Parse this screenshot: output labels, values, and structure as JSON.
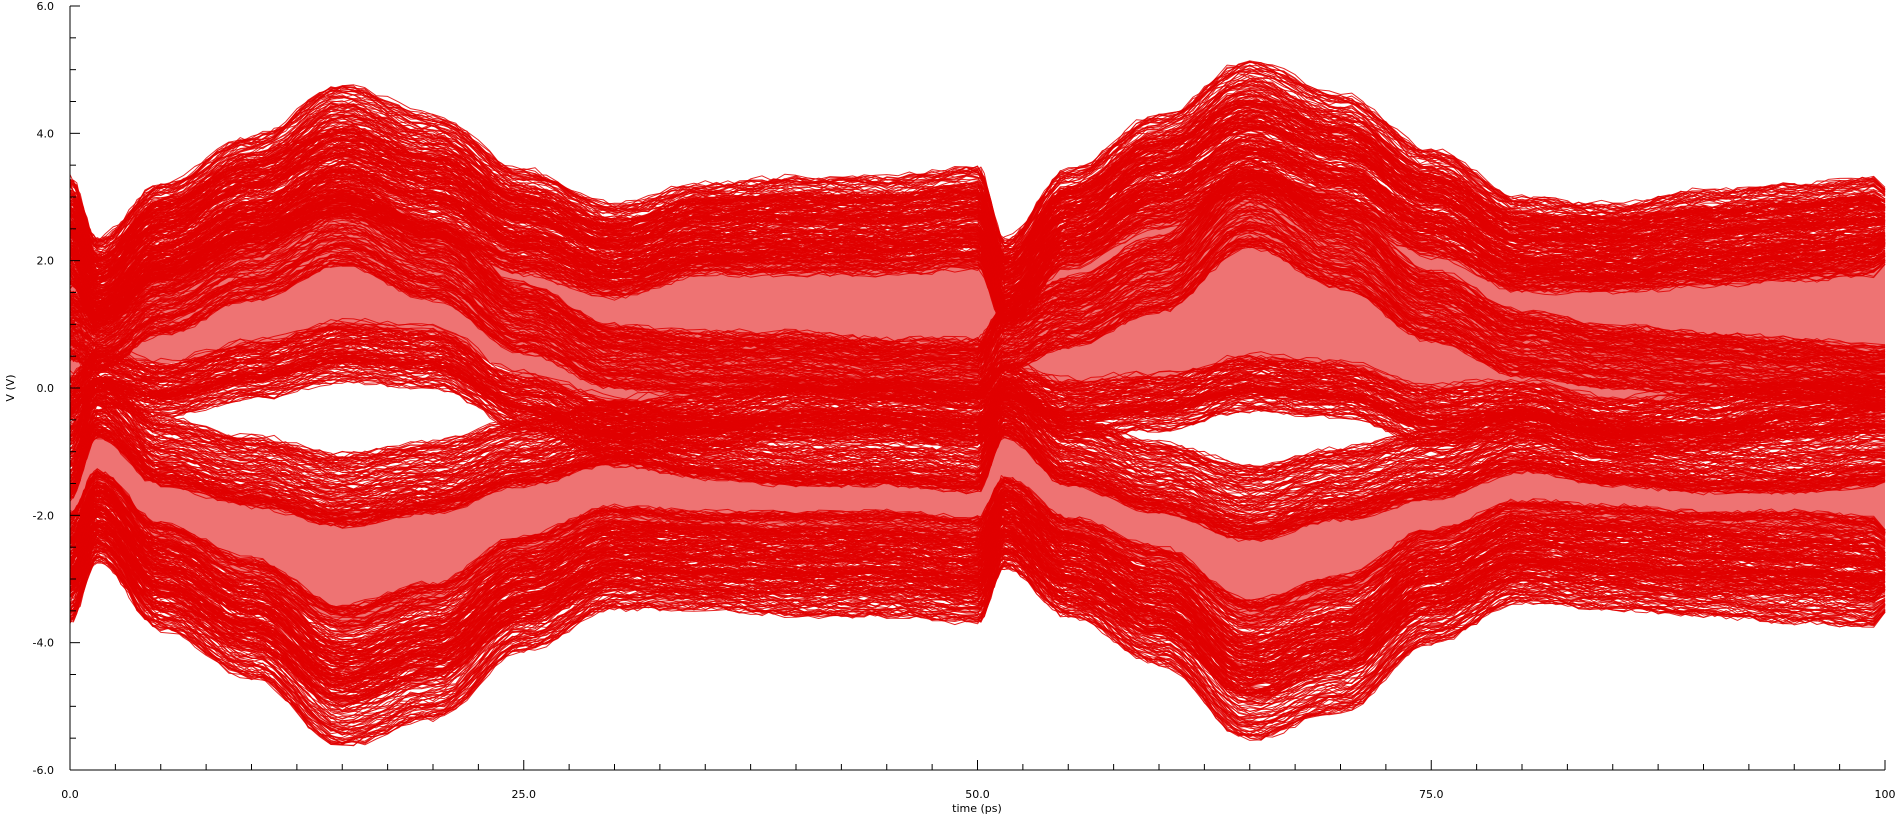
{
  "chart_data": {
    "type": "line",
    "plot_kind": "eye-diagram-overlay",
    "xlabel": "time (ps)",
    "ylabel": "V (V)",
    "xlim": [
      0,
      100
    ],
    "ylim": [
      -6.0,
      6.0
    ],
    "x_ticks": [
      0,
      25,
      50,
      75,
      100
    ],
    "x_tick_labels": [
      "0.0",
      "25.0",
      "50.0",
      "75.0",
      "100"
    ],
    "y_ticks": [
      -6,
      -4,
      -2,
      0,
      2,
      4,
      6
    ],
    "y_tick_labels": [
      "-6.0",
      "-4.0",
      "-2.0",
      "0.0",
      "2.0",
      "4.0",
      "6.0"
    ],
    "grid": false,
    "legend": "none",
    "trace_color": "#e00000",
    "series": [
      {
        "x": [
          0,
          1.5,
          5,
          10,
          15,
          20,
          25,
          30,
          35,
          40,
          45,
          50,
          51.5,
          55,
          60,
          65,
          70,
          75,
          80,
          85,
          90,
          95,
          100
        ],
        "values": [
          2.7,
          1.8,
          2.6,
          3.3,
          4.05,
          3.6,
          2.8,
          2.3,
          2.6,
          2.7,
          2.7,
          2.85,
          1.8,
          2.8,
          3.6,
          4.4,
          3.9,
          3.1,
          2.4,
          2.3,
          2.5,
          2.6,
          2.7
        ]
      },
      {
        "x": [
          0,
          1.5,
          5,
          10,
          15,
          20,
          25,
          30,
          35,
          40,
          45,
          50,
          51.5,
          55,
          60,
          65,
          70,
          75,
          80,
          85,
          90,
          95,
          100
        ],
        "values": [
          2.2,
          1.5,
          2.3,
          2.9,
          3.4,
          3.0,
          2.4,
          2.0,
          2.4,
          2.4,
          2.4,
          2.5,
          1.5,
          2.5,
          3.2,
          3.8,
          3.4,
          2.7,
          2.1,
          2.1,
          2.2,
          2.3,
          2.4
        ]
      },
      {
        "x": [
          0,
          1.5,
          5,
          10,
          15,
          20,
          25,
          30,
          35,
          40,
          45,
          50,
          51.5,
          55,
          60,
          65,
          70,
          75,
          80,
          85,
          90,
          95,
          100
        ],
        "values": [
          1.0,
          0.8,
          1.4,
          2.0,
          2.6,
          2.0,
          1.1,
          0.5,
          0.4,
          0.4,
          0.3,
          0.3,
          0.8,
          1.2,
          1.8,
          2.9,
          2.2,
          1.3,
          0.7,
          0.5,
          0.4,
          0.3,
          0.2
        ]
      },
      {
        "x": [
          0,
          1.5,
          5,
          10,
          15,
          20,
          25,
          30,
          35,
          40,
          45,
          50,
          51.5,
          55,
          60,
          65,
          70,
          75,
          80,
          85,
          90,
          95,
          100
        ],
        "values": [
          -0.2,
          0.2,
          0.0,
          0.3,
          0.6,
          0.5,
          -0.2,
          -0.6,
          -0.5,
          -0.3,
          -0.3,
          -0.4,
          0.0,
          -0.3,
          -0.2,
          0.1,
          0.0,
          -0.4,
          -0.3,
          -0.6,
          -0.5,
          -0.3,
          -0.2
        ]
      },
      {
        "x": [
          0,
          1.5,
          5,
          10,
          15,
          20,
          25,
          30,
          35,
          40,
          45,
          50,
          51.5,
          55,
          60,
          65,
          70,
          75,
          80,
          85,
          90,
          95,
          100
        ],
        "values": [
          -1.2,
          -0.3,
          -1.0,
          -1.3,
          -1.6,
          -1.4,
          -1.0,
          -0.7,
          -0.9,
          -1.0,
          -1.0,
          -1.1,
          -0.3,
          -1.0,
          -1.4,
          -1.8,
          -1.5,
          -1.2,
          -0.8,
          -1.0,
          -1.1,
          -1.1,
          -1.0
        ]
      },
      {
        "x": [
          0,
          1.5,
          5,
          10,
          15,
          20,
          25,
          30,
          35,
          40,
          45,
          50,
          51.5,
          55,
          60,
          65,
          70,
          75,
          80,
          85,
          90,
          95,
          100
        ],
        "values": [
          -3.0,
          -2.1,
          -3.1,
          -3.8,
          -4.8,
          -4.4,
          -3.4,
          -2.8,
          -2.8,
          -2.9,
          -2.9,
          -3.0,
          -2.2,
          -2.9,
          -3.6,
          -4.7,
          -4.3,
          -3.3,
          -2.7,
          -2.8,
          -2.9,
          -3.0,
          -3.05
        ]
      },
      {
        "x": [
          0,
          1.5,
          5,
          10,
          15,
          20,
          25,
          30,
          35,
          40,
          45,
          50,
          51.5,
          55,
          60,
          65,
          70,
          75,
          80,
          85,
          90,
          95,
          100
        ],
        "values": [
          -2.6,
          -1.9,
          -2.8,
          -3.4,
          -4.2,
          -3.8,
          -3.0,
          -2.5,
          -2.6,
          -2.6,
          -2.6,
          -2.7,
          -2.0,
          -2.7,
          -3.2,
          -4.1,
          -3.7,
          -2.9,
          -2.4,
          -2.5,
          -2.6,
          -2.6,
          -2.7
        ]
      }
    ]
  }
}
